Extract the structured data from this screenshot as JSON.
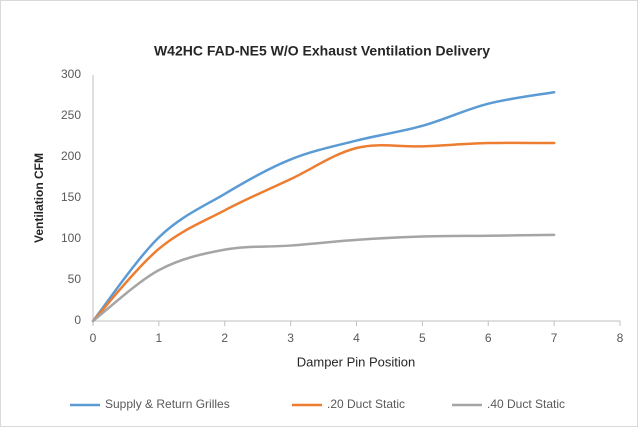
{
  "chart_data": {
    "type": "line",
    "title": "W42HC FAD-NE5 W/O Exhaust Ventilation Delivery",
    "x_label": "Damper Pin Position",
    "y_label": "Ventilation CFM",
    "x": [
      0,
      1,
      2,
      3,
      4,
      5,
      6,
      7
    ],
    "series": [
      {
        "name": "Supply & Return Grilles",
        "color": "#5b9bd5",
        "values": [
          0,
          102,
          155,
          197,
          220,
          238,
          265,
          279
        ]
      },
      {
        "name": ".20 Duct Static",
        "color": "#ed7d31",
        "values": [
          0,
          88,
          135,
          173,
          211,
          213,
          217,
          217
        ]
      },
      {
        "name": ".40 Duct Static",
        "color": "#a5a5a5",
        "values": [
          0,
          62,
          87,
          92,
          99,
          103,
          104,
          105
        ]
      }
    ],
    "xlim": [
      0,
      8
    ],
    "xticks": [
      0,
      1,
      2,
      3,
      4,
      5,
      6,
      7,
      8
    ],
    "ylim": [
      0,
      300
    ],
    "yticks": [
      0,
      50,
      100,
      150,
      200,
      250,
      300
    ],
    "grid": false,
    "legend": "bottom"
  }
}
